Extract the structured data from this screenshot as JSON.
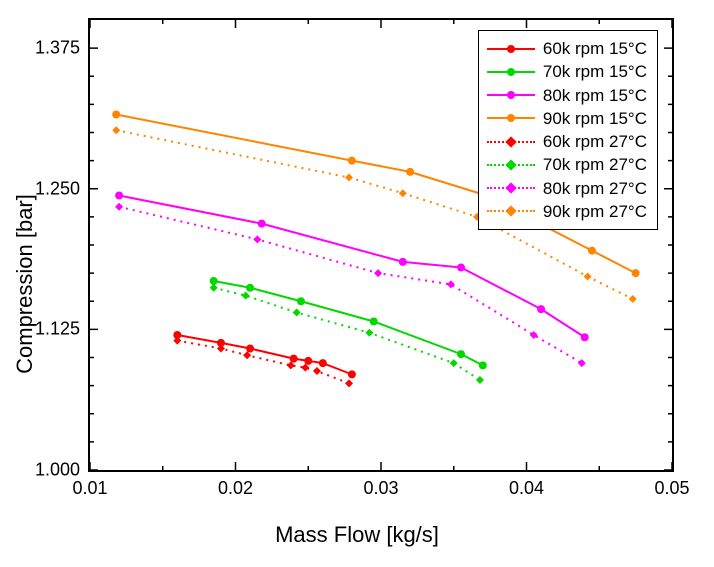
{
  "chart": {
    "type": "line-scatter",
    "background_color": "#ffffff",
    "border_color": "#000000",
    "xlabel": "Mass Flow [kg/s]",
    "ylabel": "Compression [bar]",
    "label_fontsize": 22,
    "tick_fontsize": 18,
    "legend_fontsize": 17,
    "xlim": [
      0.01,
      0.05
    ],
    "ylim": [
      1.0,
      1.4
    ],
    "xticks": [
      0.01,
      0.02,
      0.03,
      0.04,
      0.05
    ],
    "yticks": [
      1.0,
      1.125,
      1.25,
      1.375
    ],
    "xtick_format": "0.00",
    "ytick_format": "0.000",
    "tick_len_major": 8,
    "tick_len_minor": 4,
    "x_minor_per_major": 1,
    "y_minor_per_major": 4,
    "line_width": 2,
    "marker_size": 8,
    "legend_position": "top-right",
    "series": [
      {
        "label": "60k rpm 15°C",
        "color": "#ff0000",
        "dash": "solid",
        "marker": "circle",
        "x": [
          0.016,
          0.019,
          0.021,
          0.024,
          0.025,
          0.026,
          0.028
        ],
        "y": [
          1.12,
          1.113,
          1.108,
          1.099,
          1.097,
          1.095,
          1.085
        ]
      },
      {
        "label": "70k rpm 15°C",
        "color": "#00d800",
        "dash": "solid",
        "marker": "circle",
        "x": [
          0.0185,
          0.021,
          0.0245,
          0.0295,
          0.0355,
          0.037
        ],
        "y": [
          1.168,
          1.162,
          1.15,
          1.132,
          1.103,
          1.093
        ]
      },
      {
        "label": "80k rpm 15°C",
        "color": "#ff00ff",
        "dash": "solid",
        "marker": "circle",
        "x": [
          0.012,
          0.0218,
          0.0315,
          0.0355,
          0.041,
          0.044
        ],
        "y": [
          1.244,
          1.219,
          1.185,
          1.18,
          1.143,
          1.118
        ]
      },
      {
        "label": "90k rpm 15°C",
        "color": "#ff8400",
        "dash": "solid",
        "marker": "circle",
        "x": [
          0.0118,
          0.028,
          0.032,
          0.037,
          0.0445,
          0.0475
        ],
        "y": [
          1.316,
          1.275,
          1.265,
          1.245,
          1.195,
          1.175
        ]
      },
      {
        "label": "60k rpm 27°C",
        "color": "#ff0000",
        "dash": "dotted",
        "marker": "diamond",
        "x": [
          0.016,
          0.019,
          0.0208,
          0.0238,
          0.0248,
          0.0256,
          0.0278
        ],
        "y": [
          1.115,
          1.108,
          1.102,
          1.093,
          1.091,
          1.088,
          1.077
        ]
      },
      {
        "label": "70k rpm 27°C",
        "color": "#00d800",
        "dash": "dotted",
        "marker": "diamond",
        "x": [
          0.0185,
          0.0207,
          0.0242,
          0.0292,
          0.035,
          0.0368
        ],
        "y": [
          1.162,
          1.155,
          1.14,
          1.122,
          1.095,
          1.08
        ]
      },
      {
        "label": "80k rpm 27°C",
        "color": "#ff00ff",
        "dash": "dotted",
        "marker": "diamond",
        "x": [
          0.012,
          0.0215,
          0.0298,
          0.0348,
          0.0405,
          0.0438
        ],
        "y": [
          1.234,
          1.205,
          1.175,
          1.165,
          1.12,
          1.095
        ]
      },
      {
        "label": "90k rpm 27°C",
        "color": "#ff8400",
        "dash": "dotted",
        "marker": "diamond",
        "x": [
          0.0118,
          0.0278,
          0.0315,
          0.0366,
          0.0442,
          0.0473
        ],
        "y": [
          1.302,
          1.26,
          1.246,
          1.225,
          1.172,
          1.152
        ]
      }
    ]
  }
}
